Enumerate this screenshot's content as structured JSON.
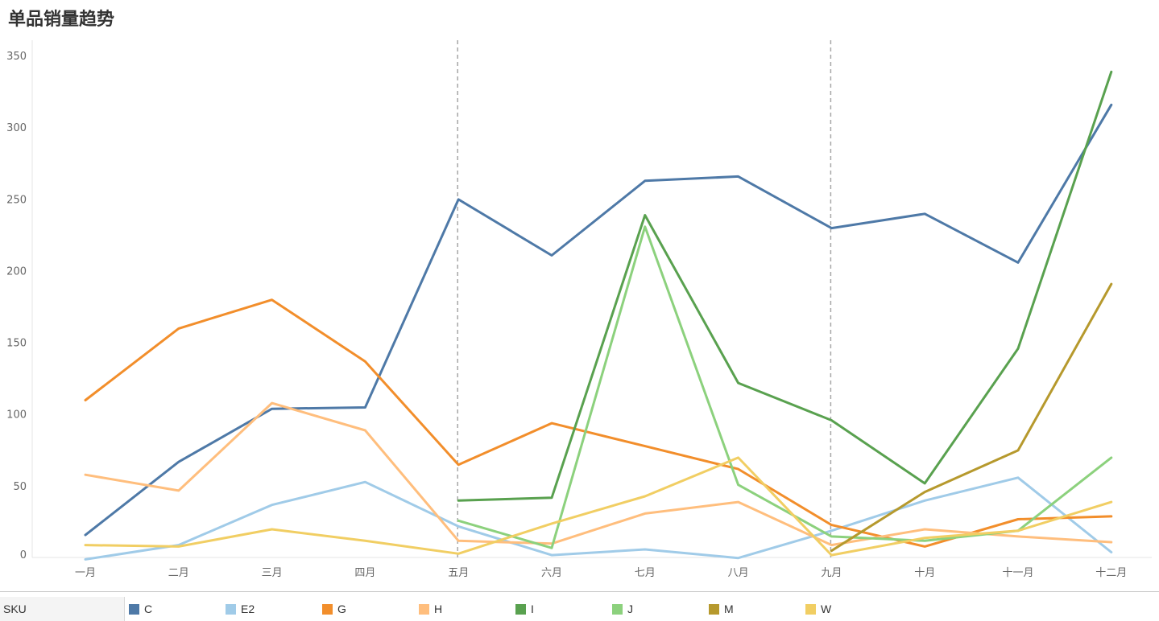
{
  "page": {
    "title": "单品销量趋势"
  },
  "legend": {
    "title": "SKU",
    "items": [
      {
        "name": "C",
        "color": "#4e79a7"
      },
      {
        "name": "E2",
        "color": "#a0cbe8"
      },
      {
        "name": "G",
        "color": "#f28e2b"
      },
      {
        "name": "H",
        "color": "#ffbe7d"
      },
      {
        "name": "I",
        "color": "#59a14f"
      },
      {
        "name": "J",
        "color": "#8cd17d"
      },
      {
        "name": "M",
        "color": "#b6992d"
      },
      {
        "name": "W",
        "color": "#f1ce63"
      }
    ]
  },
  "chart_data": {
    "type": "line",
    "title": "单品销量趋势",
    "xlabel": "",
    "ylabel": "",
    "categories": [
      "一月",
      "二月",
      "三月",
      "四月",
      "五月",
      "六月",
      "七月",
      "八月",
      "九月",
      "十月",
      "十一月",
      "十二月"
    ],
    "ylim": [
      0,
      350
    ],
    "yticks": [
      0,
      50,
      100,
      150,
      200,
      250,
      300,
      350
    ],
    "grid": false,
    "legend_position": "bottom",
    "reference_lines": [
      "五月",
      "九月"
    ],
    "series": [
      {
        "name": "C",
        "color": "#4e79a7",
        "values": [
          19,
          70,
          107,
          108,
          253,
          214,
          266,
          269,
          233,
          243,
          209,
          319
        ]
      },
      {
        "name": "E2",
        "color": "#a0cbe8",
        "values": [
          2,
          12,
          40,
          56,
          25,
          5,
          9,
          3,
          22,
          43,
          59,
          7
        ]
      },
      {
        "name": "G",
        "color": "#f28e2b",
        "values": [
          113,
          163,
          183,
          140,
          68,
          97,
          81,
          65,
          26,
          11,
          30,
          32
        ]
      },
      {
        "name": "H",
        "color": "#ffbe7d",
        "values": [
          61,
          50,
          111,
          92,
          15,
          13,
          34,
          42,
          12,
          23,
          18,
          14
        ]
      },
      {
        "name": "I",
        "color": "#59a14f",
        "values": [
          null,
          null,
          null,
          null,
          43,
          45,
          242,
          125,
          99,
          55,
          149,
          342
        ]
      },
      {
        "name": "J",
        "color": "#8cd17d",
        "values": [
          null,
          null,
          null,
          null,
          29,
          10,
          234,
          54,
          18,
          15,
          22,
          73
        ]
      },
      {
        "name": "M",
        "color": "#b6992d",
        "values": [
          null,
          null,
          null,
          null,
          null,
          null,
          null,
          null,
          8,
          49,
          78,
          194
        ]
      },
      {
        "name": "W",
        "color": "#f1ce63",
        "values": [
          12,
          11,
          23,
          15,
          6,
          27,
          46,
          73,
          5,
          17,
          22,
          42
        ]
      }
    ]
  }
}
